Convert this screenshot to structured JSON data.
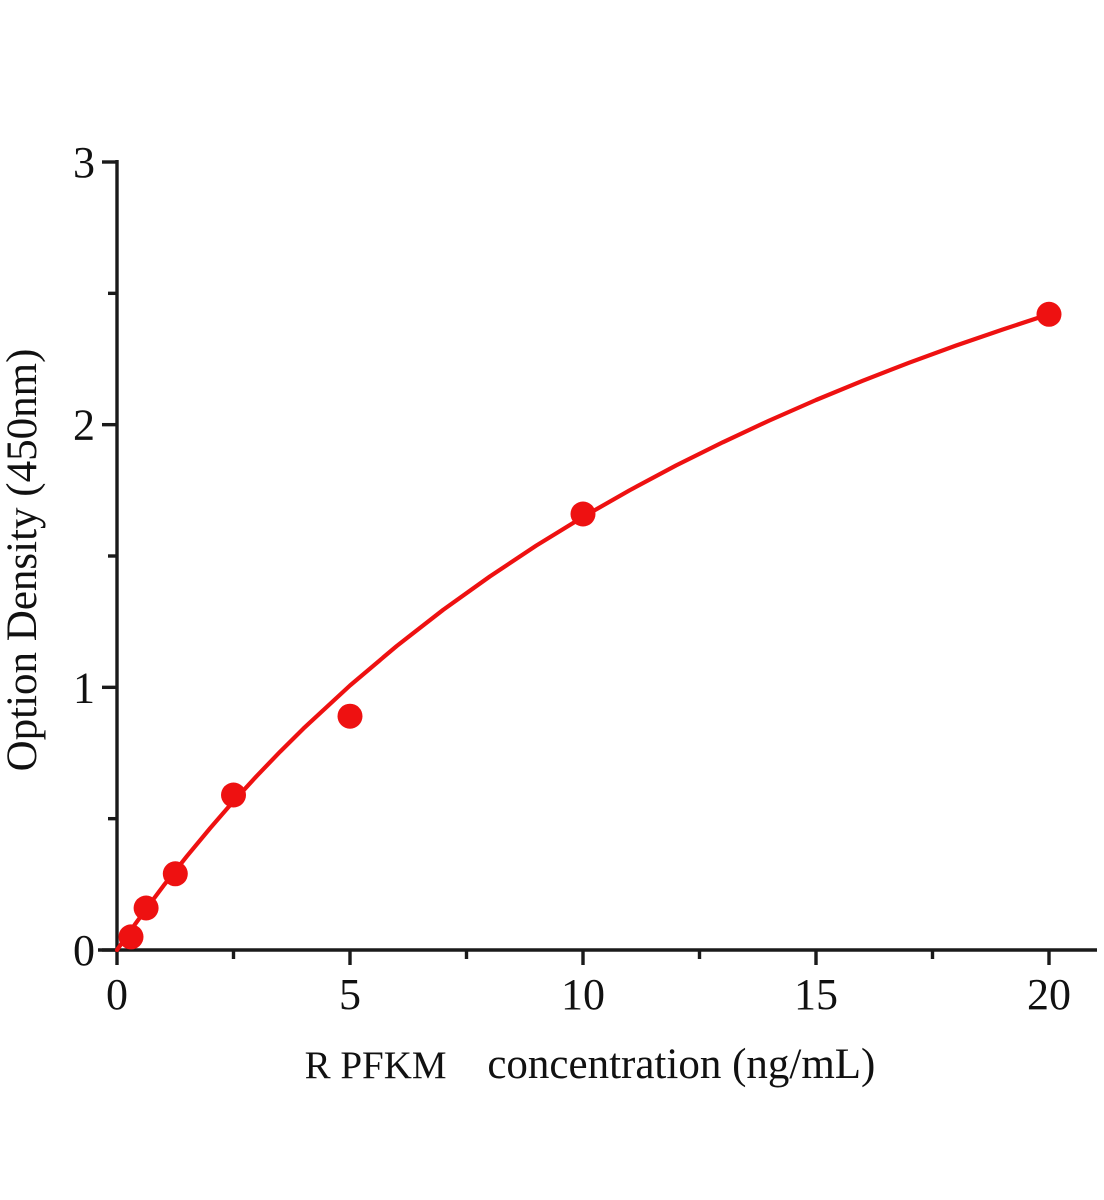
{
  "figure": {
    "background": "#ffffff",
    "accent_red": "#ee1111",
    "axis_color": "#1a1a1a"
  },
  "chart_data": {
    "type": "scatter",
    "title": "",
    "xlabel_prefix": "R PFKM",
    "xlabel": "concentration（ng/mL）",
    "ylabel": "Option Density（450nm）",
    "xlim": [
      0,
      20
    ],
    "ylim": [
      0,
      3
    ],
    "grid": false,
    "legend": null,
    "x_major_ticks": [
      0,
      5,
      10,
      15,
      20
    ],
    "x_minor_ticks": [
      2.5,
      7.5,
      12.5,
      17.5
    ],
    "y_major_ticks": [
      0,
      1,
      2,
      3
    ],
    "y_minor_ticks": [
      0.5,
      1.5,
      2.5
    ],
    "x_tick_labels": [
      "0",
      "5",
      "10",
      "15",
      "20"
    ],
    "y_tick_labels": [
      "0",
      "1",
      "2",
      "3"
    ],
    "series": [
      {
        "name": "standard points",
        "type": "scatter",
        "color": "#ee1111",
        "x": [
          0.3,
          0.625,
          1.25,
          2.5,
          5,
          10,
          20
        ],
        "y": [
          0.05,
          0.16,
          0.29,
          0.59,
          0.89,
          1.66,
          2.42
        ]
      },
      {
        "name": "fitted curve",
        "type": "line",
        "color": "#ee1111",
        "x": [
          0,
          0.2,
          0.4,
          0.7,
          1,
          1.5,
          2,
          2.5,
          3,
          3.5,
          4,
          5,
          6,
          7,
          8,
          9,
          10,
          11,
          12,
          13,
          14,
          15,
          16,
          17,
          18,
          19,
          20
        ],
        "y": [
          0,
          0.051,
          0.101,
          0.174,
          0.245,
          0.357,
          0.464,
          0.566,
          0.663,
          0.755,
          0.843,
          1.007,
          1.157,
          1.295,
          1.422,
          1.54,
          1.649,
          1.75,
          1.845,
          1.933,
          2.016,
          2.094,
          2.167,
          2.236,
          2.301,
          2.362,
          2.42
        ]
      }
    ]
  }
}
